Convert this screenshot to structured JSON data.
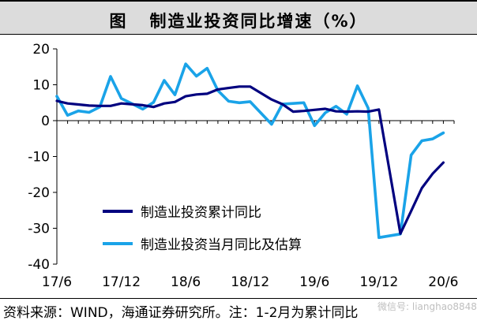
{
  "figure": {
    "prefix": "图",
    "title": "制造业投资同比增速（%）"
  },
  "footer": {
    "text": "资料来源：WIND，海通证券研究所。注：1-2月为累计同比"
  },
  "watermark": {
    "text": "微信号: lianghao8848"
  },
  "chart_data": {
    "type": "line",
    "ylim": [
      -40,
      20
    ],
    "yticks": [
      20,
      10,
      0,
      -10,
      -20,
      -30,
      -40
    ],
    "xlim": [
      "2017-06",
      "2020-07"
    ],
    "xticks": [
      "17/6",
      "17/12",
      "18/6",
      "18/12",
      "19/6",
      "19/12",
      "20/6"
    ],
    "grid": false,
    "legend_position": "lower-left inside plot",
    "colors": {
      "cumulative": "#00007f",
      "monthly": "#1aa3e8",
      "axis": "#000000"
    },
    "series": [
      {
        "name": "制造业投资累计同比",
        "x": [
          "2017-06",
          "2017-07",
          "2017-08",
          "2017-09",
          "2017-10",
          "2017-11",
          "2017-12",
          "2018-02",
          "2018-03",
          "2018-04",
          "2018-05",
          "2018-06",
          "2018-07",
          "2018-08",
          "2018-09",
          "2018-10",
          "2018-11",
          "2018-12",
          "2019-02",
          "2019-03",
          "2019-04",
          "2019-05",
          "2019-06",
          "2019-07",
          "2019-08",
          "2019-09",
          "2019-10",
          "2019-11",
          "2019-12",
          "2020-02",
          "2020-03",
          "2020-04",
          "2020-05",
          "2020-06"
        ],
        "values": [
          5.5,
          4.8,
          4.5,
          4.2,
          4.1,
          4.1,
          4.8,
          4.3,
          3.8,
          4.8,
          5.2,
          6.8,
          7.3,
          7.5,
          8.7,
          9.1,
          9.5,
          9.5,
          5.9,
          4.6,
          2.5,
          2.7,
          3.0,
          3.3,
          2.6,
          2.5,
          2.6,
          2.5,
          3.1,
          -31.5,
          -25.2,
          -18.8,
          -14.8,
          -11.7
        ]
      },
      {
        "name": "制造业投资当月同比及估算",
        "x": [
          "2017-06",
          "2017-07",
          "2017-08",
          "2017-09",
          "2017-10",
          "2017-11",
          "2017-12",
          "2018-02",
          "2018-03",
          "2018-04",
          "2018-05",
          "2018-06",
          "2018-07",
          "2018-08",
          "2018-09",
          "2018-10",
          "2018-11",
          "2018-12",
          "2019-02",
          "2019-03",
          "2019-04",
          "2019-05",
          "2019-06",
          "2019-07",
          "2019-08",
          "2019-09",
          "2019-10",
          "2019-11",
          "2019-12",
          "2020-02",
          "2020-03",
          "2020-04",
          "2020-05",
          "2020-06"
        ],
        "values": [
          6.8,
          1.5,
          2.7,
          2.3,
          3.8,
          12.3,
          6.2,
          3.2,
          5.1,
          11.2,
          7.2,
          15.8,
          12.4,
          14.6,
          8.4,
          5.4,
          5.0,
          5.3,
          -1.0,
          4.6,
          4.8,
          5.0,
          -1.4,
          2.2,
          4.0,
          1.8,
          9.7,
          3.5,
          -32.6,
          -31.6,
          -9.6,
          -5.6,
          -5.1,
          -3.4
        ]
      }
    ]
  }
}
